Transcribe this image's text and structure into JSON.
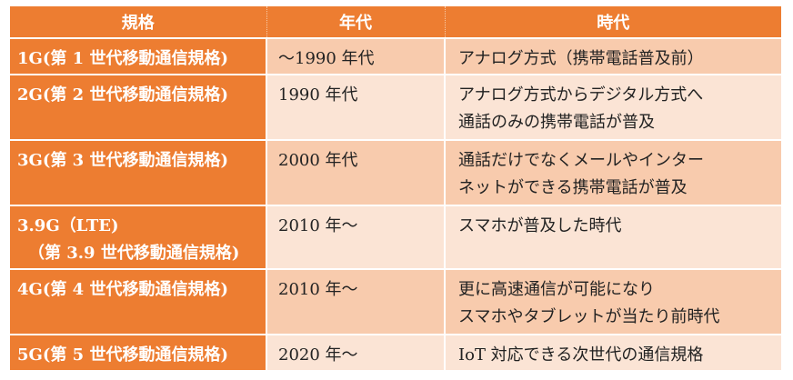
{
  "headers": [
    "規格",
    "年代",
    "時代"
  ],
  "rows": [
    {
      "gen": [
        "1G(第 1 世代移動通信規格)"
      ],
      "era": "～1990 年代",
      "desc": [
        "アナログ方式（携帯電話普及前）"
      ]
    },
    {
      "gen": [
        "2G(第 2 世代移動通信規格)"
      ],
      "era": "1990 年代",
      "desc": [
        "アナログ方式からデジタル方式へ",
        "通話のみの携帯電話が普及"
      ]
    },
    {
      "gen": [
        "3G(第 3 世代移動通信規格)"
      ],
      "era": "2000 年代",
      "desc": [
        "通話だけでなくメールやインター",
        "ネットができる携帯電話が普及"
      ]
    },
    {
      "gen": [
        "3.9G（LTE)",
        "（第 3.9 世代移動通信規格)"
      ],
      "era": "2010 年～",
      "desc": [
        "スマホが普及した時代"
      ]
    },
    {
      "gen": [
        "4G(第 4 世代移動通信規格)"
      ],
      "era": "2010 年～",
      "desc": [
        "更に高速通信が可能になり",
        "スマホやタブレットが当たり前時代"
      ]
    },
    {
      "gen": [
        "5G(第 5 世代移動通信規格)"
      ],
      "era": "2020 年～",
      "desc": [
        "IoT 対応できる次世代の通信規格"
      ]
    }
  ],
  "colors": {
    "header": "#ED7D31",
    "row_dark": "#F8CBAD",
    "row_light": "#FBE4D5"
  }
}
